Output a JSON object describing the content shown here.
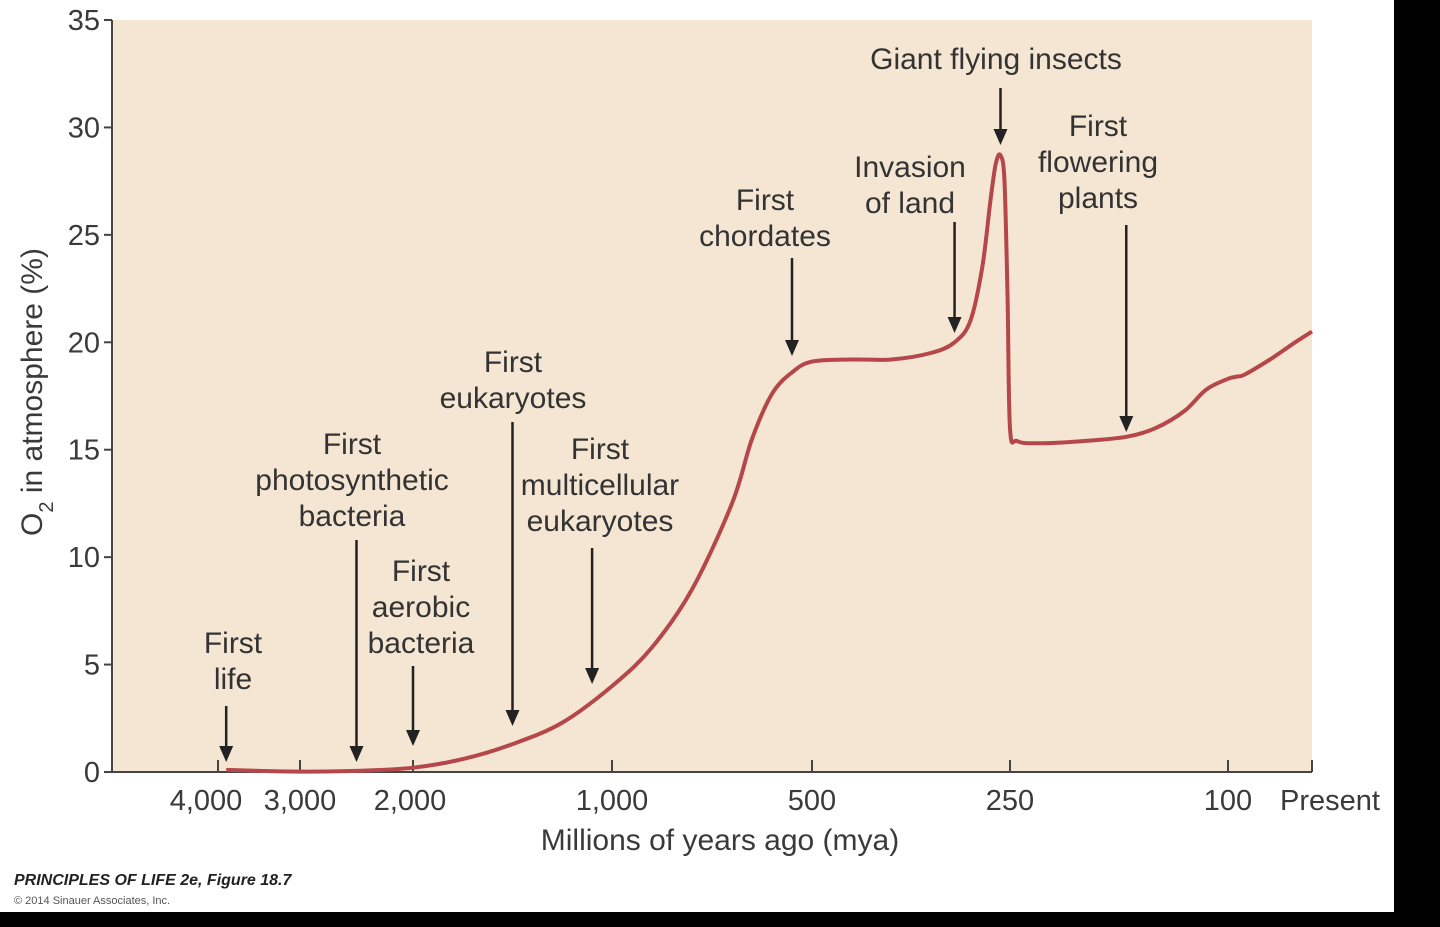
{
  "chart_data": {
    "type": "line",
    "title": "",
    "xlabel": "Millions of years ago (mya)",
    "ylabel": "O2 in atmosphere (%)",
    "ylabel_main": "O",
    "ylabel_sub": "2",
    "ylabel_rest": " in atmosphere (%)",
    "ylim": [
      0,
      35
    ],
    "y_ticks": [
      0,
      5,
      10,
      15,
      20,
      25,
      30,
      35
    ],
    "x_ticks": [
      "4,000",
      "3,000",
      "2,000",
      "1,000",
      "500",
      "250",
      "100",
      "Present"
    ],
    "x_scale": "nonlinear (piecewise)",
    "grid": false,
    "background_color": "#f4e6d3",
    "line_color": "#b5474a",
    "series": [
      {
        "points": [
          [
            3900,
            0.1
          ],
          [
            3500,
            0.05
          ],
          [
            3000,
            0.02
          ],
          [
            2500,
            0.05
          ],
          [
            2000,
            0.2
          ],
          [
            1750,
            0.6
          ],
          [
            1500,
            1.3
          ],
          [
            1250,
            2.3
          ],
          [
            1000,
            4.0
          ],
          [
            900,
            5.8
          ],
          [
            800,
            8.5
          ],
          [
            700,
            12.5
          ],
          [
            650,
            15.5
          ],
          [
            600,
            17.6
          ],
          [
            550,
            18.6
          ],
          [
            500,
            19.1
          ],
          [
            450,
            19.2
          ],
          [
            400,
            19.2
          ],
          [
            350,
            19.5
          ],
          [
            320,
            20.0
          ],
          [
            300,
            21.0
          ],
          [
            285,
            23.5
          ],
          [
            275,
            26.5
          ],
          [
            268,
            28.3
          ],
          [
            262,
            28.7
          ],
          [
            257,
            27.5
          ],
          [
            253,
            22.0
          ],
          [
            250,
            16.0
          ],
          [
            245,
            15.4
          ],
          [
            230,
            15.3
          ],
          [
            200,
            15.4
          ],
          [
            170,
            15.6
          ],
          [
            150,
            16.0
          ],
          [
            130,
            16.8
          ],
          [
            115,
            17.8
          ],
          [
            100,
            18.3
          ],
          [
            90,
            18.4
          ],
          [
            80,
            18.5
          ],
          [
            50,
            19.2
          ],
          [
            20,
            20.0
          ],
          [
            0,
            20.5
          ]
        ]
      }
    ],
    "annotations": [
      {
        "lines": [
          "First",
          "life"
        ],
        "x_mya": 3900,
        "y_target": 0.1
      },
      {
        "lines": [
          "First",
          "photosynthetic",
          "bacteria"
        ],
        "x_mya": 2500,
        "y_target": 0.05
      },
      {
        "lines": [
          "First",
          "aerobic",
          "bacteria"
        ],
        "x_mya": 2000,
        "y_target": 0.2
      },
      {
        "lines": [
          "First",
          "eukaryotes"
        ],
        "x_mya": 1500,
        "y_target": 1.3
      },
      {
        "lines": [
          "First",
          "multicellular",
          "eukaryotes"
        ],
        "x_mya": 1100,
        "y_target": 3.2
      },
      {
        "lines": [
          "First",
          "chordates"
        ],
        "x_mya": 550,
        "y_target": 18.6
      },
      {
        "lines": [
          "Invasion",
          "of land"
        ],
        "x_mya": 320,
        "y_target": 20.0
      },
      {
        "lines": [
          "Giant flying insects"
        ],
        "x_mya": 262,
        "y_target": 28.7
      },
      {
        "lines": [
          "First",
          "flowering",
          "plants"
        ],
        "x_mya": 170,
        "y_target": 15.6
      }
    ]
  },
  "credit": {
    "title": "PRINCIPLES OF LIFE 2e, Figure 18.7",
    "copyright": "© 2014 Sinauer Associates, Inc."
  }
}
